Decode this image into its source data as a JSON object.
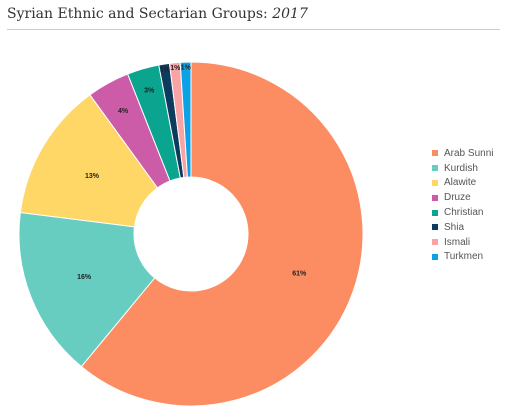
{
  "title": {
    "main": "Syrian Ethnic and Sectarian Groups: ",
    "sub": "2017"
  },
  "chart_data": {
    "type": "pie",
    "donut": true,
    "categories": [
      "Arab Sunni",
      "Kurdish",
      "Alawite",
      "Druze",
      "Christian",
      "Shia",
      "Ismali",
      "Turkmen"
    ],
    "values": [
      61,
      16,
      13,
      4,
      3,
      1,
      1,
      1
    ],
    "labels": [
      "61%",
      "16%",
      "13%",
      "4%",
      "3%",
      "1%",
      "1%",
      "1%"
    ],
    "colors": [
      "#fc8d62",
      "#66cdc0",
      "#fed766",
      "#cd5ca8",
      "#0aa48f",
      "#0d3b5e",
      "#f9a3a4",
      "#0da2e6"
    ],
    "legend_position": "right"
  }
}
